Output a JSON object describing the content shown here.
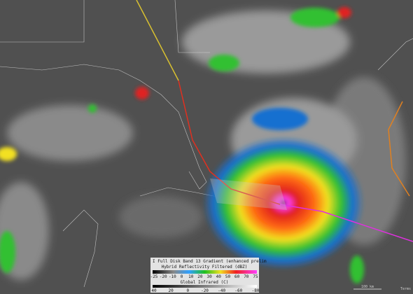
{
  "legend": {
    "title": "I Full Disk Band 13 Gradient (enhanced prelim",
    "reflectivity": {
      "label": "Hybrid Reflectivity Filtered (dBZ)",
      "ticks": [
        "-25",
        "-20",
        "-10",
        "0",
        "10",
        "20",
        "30",
        "40",
        "50",
        "60",
        "70",
        "75"
      ]
    },
    "infrared": {
      "label": "Global Infrared (C)",
      "ticks": [
        "40",
        "20",
        "0",
        "-20",
        "-40",
        "-60",
        "-80"
      ]
    }
  },
  "scale": {
    "distance": "100 km",
    "terms": "Terms"
  }
}
